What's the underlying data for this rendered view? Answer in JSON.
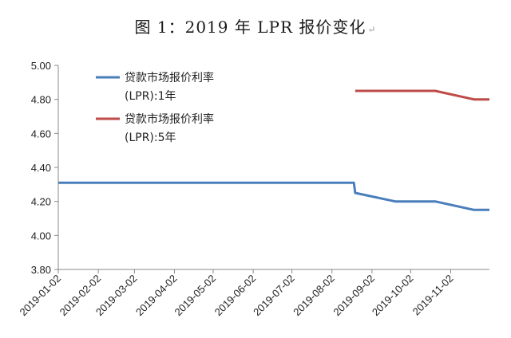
{
  "title": "图 1：2019 年 LPR 报价变化",
  "title_mark": "↵",
  "chart_data": {
    "type": "line",
    "ylim": [
      3.8,
      5.0
    ],
    "yticks": [
      "5.00",
      "4.80",
      "4.60",
      "4.40",
      "4.20",
      "4.00",
      "3.80"
    ],
    "ytick_values": [
      5.0,
      4.8,
      4.6,
      4.4,
      4.2,
      4.0,
      3.8
    ],
    "xlim": [
      "2019-01-02",
      "2019-12-02"
    ],
    "xticks": [
      "2019-01-02",
      "2019-02-02",
      "2019-03-02",
      "2019-04-02",
      "2019-05-02",
      "2019-06-02",
      "2019-07-02",
      "2019-08-02",
      "2019-09-02",
      "2019-10-02",
      "2019-11-02"
    ],
    "grid": false,
    "legend_position": "top-left",
    "series": [
      {
        "name_line1": "贷款市场报价利率",
        "name_line2": "(LPR):1年",
        "color": "#4A7EBB",
        "x": [
          "2019-01-02",
          "2019-08-19",
          "2019-08-20",
          "2019-09-20",
          "2019-10-21",
          "2019-11-20",
          "2019-12-02"
        ],
        "y": [
          4.31,
          4.31,
          4.25,
          4.2,
          4.2,
          4.15,
          4.15
        ]
      },
      {
        "name_line1": "贷款市场报价利率",
        "name_line2": "(LPR):5年",
        "color": "#BE4B48",
        "x": [
          "2019-08-20",
          "2019-09-20",
          "2019-10-21",
          "2019-11-20",
          "2019-12-02"
        ],
        "y": [
          4.85,
          4.85,
          4.85,
          4.8,
          4.8
        ]
      }
    ]
  }
}
